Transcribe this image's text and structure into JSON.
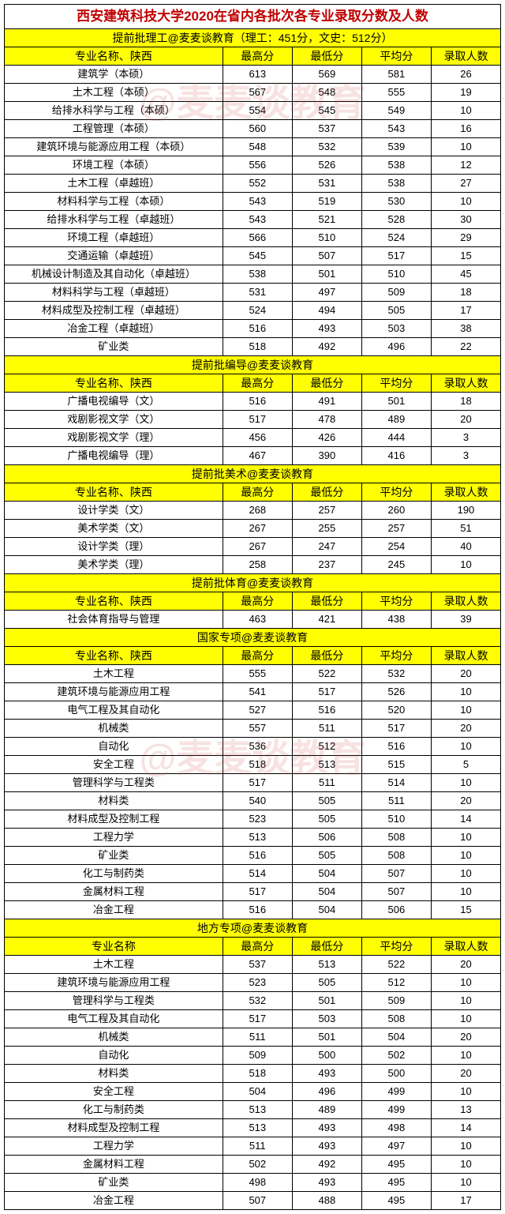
{
  "title": "西安建筑科技大学2020在省内各批次各专业录取分数及人数",
  "watermark": "@麦麦谈教育",
  "col_widths": {
    "name": "44%",
    "max": "14%",
    "min": "14%",
    "avg": "14%",
    "count": "14%"
  },
  "headers": {
    "name": "专业名称、陕西",
    "name2": "专业名称",
    "max": "最高分",
    "min": "最低分",
    "avg": "平均分",
    "count": "录取人数"
  },
  "sections": [
    {
      "title": "提前批理工@麦麦谈教育（理工：451分，文史：512分）",
      "header_key": "name",
      "rows": [
        [
          "建筑学（本硕）",
          "613",
          "569",
          "581",
          "26"
        ],
        [
          "土木工程（本硕）",
          "567",
          "548",
          "555",
          "19"
        ],
        [
          "给排水科学与工程（本硕）",
          "554",
          "545",
          "549",
          "10"
        ],
        [
          "工程管理（本硕）",
          "560",
          "537",
          "543",
          "16"
        ],
        [
          "建筑环境与能源应用工程（本硕）",
          "548",
          "532",
          "539",
          "10"
        ],
        [
          "环境工程（本硕）",
          "556",
          "526",
          "538",
          "12"
        ],
        [
          "土木工程（卓越班）",
          "552",
          "531",
          "538",
          "27"
        ],
        [
          "材料科学与工程（本硕）",
          "543",
          "519",
          "530",
          "10"
        ],
        [
          "给排水科学与工程（卓越班）",
          "543",
          "521",
          "528",
          "30"
        ],
        [
          "环境工程（卓越班）",
          "566",
          "510",
          "524",
          "29"
        ],
        [
          "交通运输（卓越班）",
          "545",
          "507",
          "517",
          "15"
        ],
        [
          "机械设计制造及其自动化（卓越班）",
          "538",
          "501",
          "510",
          "45"
        ],
        [
          "材料科学与工程（卓越班）",
          "531",
          "497",
          "509",
          "18"
        ],
        [
          "材料成型及控制工程（卓越班）",
          "524",
          "494",
          "505",
          "17"
        ],
        [
          "冶金工程（卓越班）",
          "516",
          "493",
          "503",
          "38"
        ],
        [
          "矿业类",
          "518",
          "492",
          "496",
          "22"
        ]
      ]
    },
    {
      "title": "提前批编导@麦麦谈教育",
      "header_key": "name",
      "rows": [
        [
          "广播电视编导（文）",
          "516",
          "491",
          "501",
          "18"
        ],
        [
          "戏剧影视文学（文）",
          "517",
          "478",
          "489",
          "20"
        ],
        [
          "戏剧影视文学（理）",
          "456",
          "426",
          "444",
          "3"
        ],
        [
          "广播电视编导（理）",
          "467",
          "390",
          "416",
          "3"
        ]
      ]
    },
    {
      "title": "提前批美术@麦麦谈教育",
      "header_key": "name",
      "rows": [
        [
          "设计学类（文）",
          "268",
          "257",
          "260",
          "190"
        ],
        [
          "美术学类（文）",
          "267",
          "255",
          "257",
          "51"
        ],
        [
          "设计学类（理）",
          "267",
          "247",
          "254",
          "40"
        ],
        [
          "美术学类（理）",
          "258",
          "237",
          "245",
          "10"
        ]
      ]
    },
    {
      "title": "提前批体育@麦麦谈教育",
      "header_key": "name",
      "rows": [
        [
          "社会体育指导与管理",
          "463",
          "421",
          "438",
          "39"
        ]
      ]
    },
    {
      "title": "国家专项@麦麦谈教育",
      "header_key": "name",
      "rows": [
        [
          "土木工程",
          "555",
          "522",
          "532",
          "20"
        ],
        [
          "建筑环境与能源应用工程",
          "541",
          "517",
          "526",
          "10"
        ],
        [
          "电气工程及其自动化",
          "527",
          "516",
          "520",
          "10"
        ],
        [
          "机械类",
          "557",
          "511",
          "517",
          "20"
        ],
        [
          "自动化",
          "536",
          "512",
          "516",
          "10"
        ],
        [
          "安全工程",
          "518",
          "513",
          "515",
          "5"
        ],
        [
          "管理科学与工程类",
          "517",
          "511",
          "514",
          "10"
        ],
        [
          "材料类",
          "540",
          "505",
          "511",
          "20"
        ],
        [
          "材料成型及控制工程",
          "523",
          "505",
          "510",
          "14"
        ],
        [
          "工程力学",
          "513",
          "506",
          "508",
          "10"
        ],
        [
          "矿业类",
          "516",
          "505",
          "508",
          "10"
        ],
        [
          "化工与制药类",
          "514",
          "504",
          "507",
          "10"
        ],
        [
          "金属材料工程",
          "517",
          "504",
          "507",
          "10"
        ],
        [
          "冶金工程",
          "516",
          "504",
          "506",
          "15"
        ]
      ]
    },
    {
      "title": "地方专项@麦麦谈教育",
      "header_key": "name2",
      "rows": [
        [
          "土木工程",
          "537",
          "513",
          "522",
          "20"
        ],
        [
          "建筑环境与能源应用工程",
          "523",
          "505",
          "512",
          "10"
        ],
        [
          "管理科学与工程类",
          "532",
          "501",
          "509",
          "10"
        ],
        [
          "电气工程及其自动化",
          "517",
          "503",
          "508",
          "10"
        ],
        [
          "机械类",
          "511",
          "501",
          "504",
          "20"
        ],
        [
          "自动化",
          "509",
          "500",
          "502",
          "10"
        ],
        [
          "材料类",
          "518",
          "493",
          "500",
          "20"
        ],
        [
          "安全工程",
          "504",
          "496",
          "499",
          "10"
        ],
        [
          "化工与制药类",
          "513",
          "489",
          "499",
          "13"
        ],
        [
          "材料成型及控制工程",
          "513",
          "493",
          "498",
          "14"
        ],
        [
          "工程力学",
          "511",
          "493",
          "497",
          "10"
        ],
        [
          "金属材料工程",
          "502",
          "492",
          "495",
          "10"
        ],
        [
          "矿业类",
          "498",
          "493",
          "495",
          "10"
        ],
        [
          "冶金工程",
          "507",
          "488",
          "495",
          "17"
        ]
      ]
    }
  ]
}
